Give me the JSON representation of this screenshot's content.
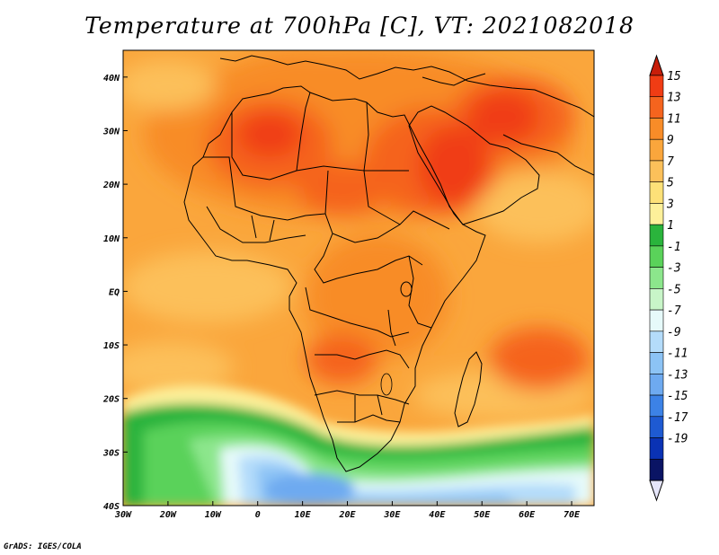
{
  "title": "Temperature at 700hPa [C], VT: 2021082018",
  "credit": "GrADS: IGES/COLA",
  "map": {
    "lon_range": [
      -30,
      75
    ],
    "lat_range": [
      -40,
      45
    ],
    "lon_ticks": [
      {
        "value": -30,
        "label": "30W"
      },
      {
        "value": -20,
        "label": "20W"
      },
      {
        "value": -10,
        "label": "10W"
      },
      {
        "value": 0,
        "label": "0"
      },
      {
        "value": 10,
        "label": "10E"
      },
      {
        "value": 20,
        "label": "20E"
      },
      {
        "value": 30,
        "label": "30E"
      },
      {
        "value": 40,
        "label": "40E"
      },
      {
        "value": 50,
        "label": "50E"
      },
      {
        "value": 60,
        "label": "60E"
      },
      {
        "value": 70,
        "label": "70E"
      }
    ],
    "lat_ticks": [
      {
        "value": 40,
        "label": "40N"
      },
      {
        "value": 30,
        "label": "30N"
      },
      {
        "value": 20,
        "label": "20N"
      },
      {
        "value": 10,
        "label": "10N"
      },
      {
        "value": 0,
        "label": "EQ"
      },
      {
        "value": -10,
        "label": "10S"
      },
      {
        "value": -20,
        "label": "20S"
      },
      {
        "value": -30,
        "label": "30S"
      },
      {
        "value": -40,
        "label": "40S"
      }
    ]
  },
  "colorbar": {
    "levels": [
      "15",
      "13",
      "11",
      "9",
      "7",
      "5",
      "3",
      "1",
      "-1",
      "-3",
      "-5",
      "-7",
      "-9",
      "-11",
      "-13",
      "-15",
      "-17",
      "-19"
    ],
    "colors": [
      "#f03c14",
      "#f5641e",
      "#f88c28",
      "#faa63c",
      "#fcc05a",
      "#fde178",
      "#fdf09a",
      "#2ab43c",
      "#5ad25a",
      "#8ce68c",
      "#c8f5c8",
      "#e6fafa",
      "#b4dcfa",
      "#8cc3f5",
      "#6eaaf0",
      "#3c82e6",
      "#1e5ad2",
      "#0a32b4",
      "#0a1464"
    ],
    "top_cap_color": "#c81e0a",
    "bottom_cap_color": "#e6e6fa"
  }
}
